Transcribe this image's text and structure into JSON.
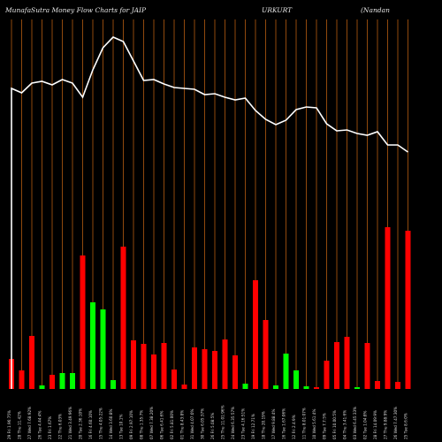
{
  "title": {
    "left": "MunafaSutra  Money Flow  Charts for JAIP",
    "middle": "URKURT",
    "right": "(Nandan"
  },
  "colors": {
    "background": "#000000",
    "gridline": "#a0520f",
    "line": "#ffffff",
    "bar_up": "#00ff00",
    "bar_down": "#ff0000",
    "label": "#dddddd"
  },
  "chart_data": {
    "type": "bar",
    "x": [
      "29 Fri 1.96:75%",
      "28 Thu 11.42%",
      "27 Wed 7.68:92%",
      "26 Tue 4.44:4%",
      "23 Fri 1.67%",
      "22 Thu 6.03%",
      "21 Wed 3.49:96%",
      "20 Tue 2.36:10%",
      "16 Fri 4.60:10%",
      "15 Thu 4.05:22%",
      "14 Wed 3.60:8%",
      "13 Tue 10.1%",
      "09 Fri 2.97:10%",
      "08 Thu 1.35:7%",
      "07 Wed 7.38:20%",
      "06 Tue 6.41:6%",
      "02 Fri 5.81:00%",
      "01 Thu 8.43:8%",
      "31 Wed 4.07:0%",
      "30 Tue 6.05:37%",
      "26 Fri 5.08:5%",
      "25 Thu 11.01:96%",
      "24 Wed 6.35:57%",
      "23 Tue 4.16:51%",
      "19 Fri 12.71%",
      "18 Thu 20.19%",
      "17 Wed 9.88:4%",
      "16 Tue 1.67:06%",
      "12 Fri 2.4:9%",
      "11 Thu 8.01:07%",
      "10 Wed 5.61:4%",
      "09 Tue 7.7:5%",
      "05 Fri 10.00:5%",
      "04 Thu 3.41:6%",
      "03 Wed 6.45:33%",
      "02 Tue 1.04:8%",
      "28 Fri 14.09:9%",
      "27 Thu 9.88:9%",
      "26 Wed 7.47:30%",
      "25 Tue 8.6:0%"
    ],
    "bars": [
      {
        "value": 34,
        "direction": "down"
      },
      {
        "value": 21,
        "direction": "down"
      },
      {
        "value": 60,
        "direction": "down"
      },
      {
        "value": 4,
        "direction": "up"
      },
      {
        "value": 16,
        "direction": "down"
      },
      {
        "value": 18,
        "direction": "up"
      },
      {
        "value": 18,
        "direction": "up"
      },
      {
        "value": 151,
        "direction": "down"
      },
      {
        "value": 98,
        "direction": "up"
      },
      {
        "value": 90,
        "direction": "up"
      },
      {
        "value": 10,
        "direction": "up"
      },
      {
        "value": 161,
        "direction": "down"
      },
      {
        "value": 55,
        "direction": "down"
      },
      {
        "value": 51,
        "direction": "down"
      },
      {
        "value": 39,
        "direction": "down"
      },
      {
        "value": 52,
        "direction": "down"
      },
      {
        "value": 22,
        "direction": "down"
      },
      {
        "value": 5,
        "direction": "down"
      },
      {
        "value": 47,
        "direction": "down"
      },
      {
        "value": 45,
        "direction": "down"
      },
      {
        "value": 43,
        "direction": "down"
      },
      {
        "value": 56,
        "direction": "down"
      },
      {
        "value": 38,
        "direction": "down"
      },
      {
        "value": 6,
        "direction": "up"
      },
      {
        "value": 123,
        "direction": "down"
      },
      {
        "value": 78,
        "direction": "down"
      },
      {
        "value": 4,
        "direction": "up"
      },
      {
        "value": 40,
        "direction": "up"
      },
      {
        "value": 21,
        "direction": "up"
      },
      {
        "value": 3,
        "direction": "up"
      },
      {
        "value": 2,
        "direction": "down"
      },
      {
        "value": 32,
        "direction": "down"
      },
      {
        "value": 53,
        "direction": "down"
      },
      {
        "value": 59,
        "direction": "down"
      },
      {
        "value": 2,
        "direction": "up"
      },
      {
        "value": 52,
        "direction": "down"
      },
      {
        "value": 9,
        "direction": "down"
      },
      {
        "value": 183,
        "direction": "down"
      },
      {
        "value": 8,
        "direction": "down"
      },
      {
        "value": 179,
        "direction": "down"
      }
    ],
    "line": [
      340,
      335,
      346,
      348,
      344,
      350,
      346,
      330,
      361,
      386,
      398,
      393,
      371,
      349,
      350,
      345,
      341,
      340,
      339,
      333,
      334,
      330,
      327,
      329,
      315,
      305,
      299,
      304,
      316,
      319,
      318,
      300,
      292,
      293,
      289,
      287,
      291,
      276,
      276,
      268
    ],
    "line_start": 0,
    "ylim": [
      0,
      440
    ],
    "grid": true,
    "xlabel": "",
    "ylabel": ""
  }
}
